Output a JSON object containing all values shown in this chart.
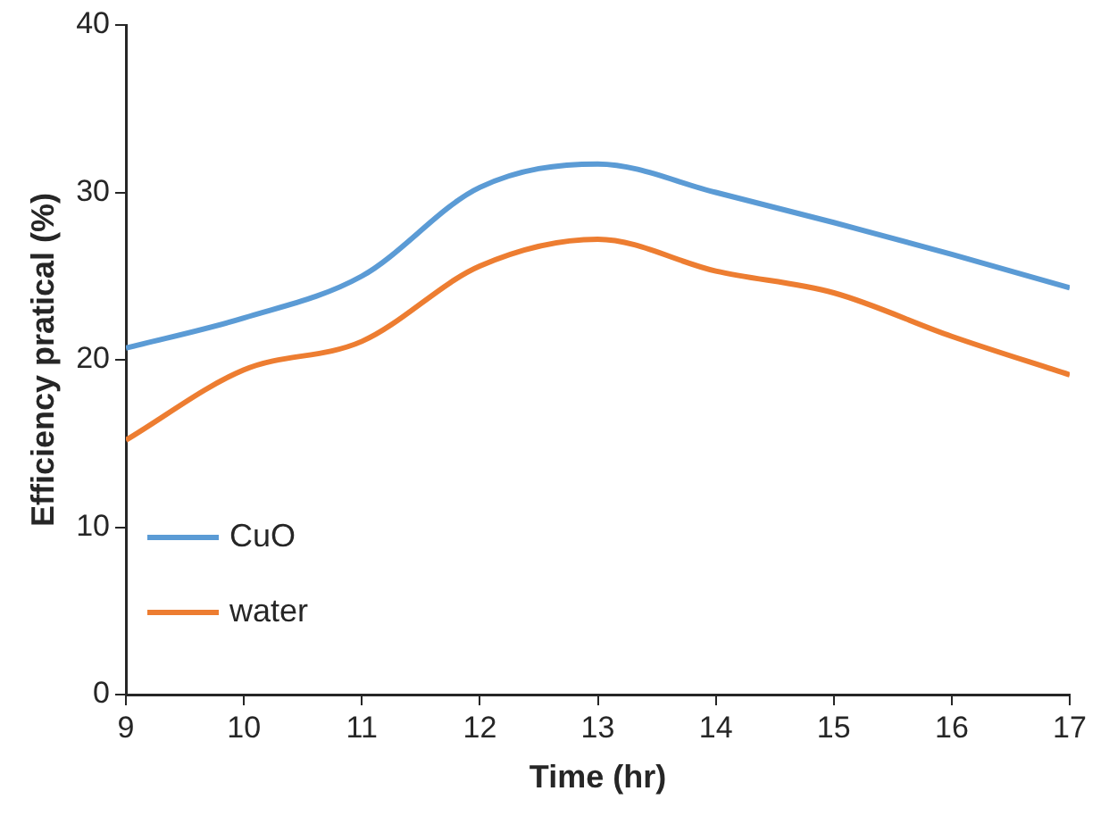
{
  "chart_data": {
    "type": "line",
    "xlabel": "Time (hr)",
    "ylabel": "Efficiency pratical (%)",
    "x": [
      9,
      10,
      11,
      12,
      13,
      14,
      15,
      16,
      17
    ],
    "xlim": [
      9,
      17
    ],
    "xticks": [
      9,
      10,
      11,
      12,
      13,
      14,
      15,
      16,
      17
    ],
    "ylim": [
      0,
      40
    ],
    "yticks": [
      0,
      10,
      20,
      30,
      40
    ],
    "grid": false,
    "legend": "bottom left",
    "marker": "none",
    "line_style": "solid",
    "series": [
      {
        "name": "CuO",
        "color": "#5b9bd5",
        "values": [
          20.7,
          22.5,
          25.0,
          30.3,
          31.7,
          30.0,
          28.2,
          26.3,
          24.3
        ]
      },
      {
        "name": "water",
        "color": "#ed7d31",
        "values": [
          15.2,
          19.4,
          21.1,
          25.6,
          27.2,
          25.3,
          24.0,
          21.4,
          19.1
        ]
      }
    ]
  }
}
